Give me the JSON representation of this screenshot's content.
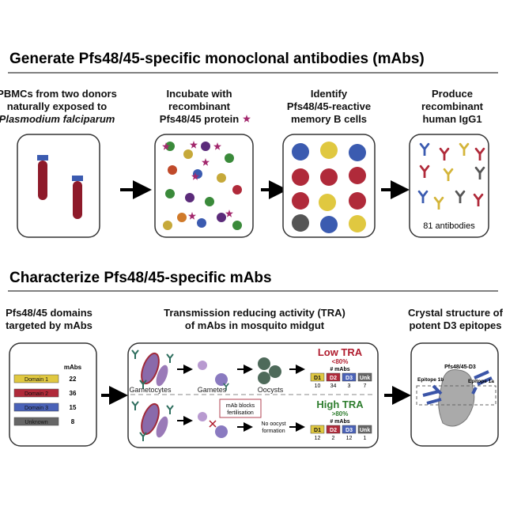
{
  "section1": {
    "title": "Generate Pfs48/45-specific monoclonal antibodies (mAbs)",
    "steps": [
      {
        "line1": "PBMCs from two donors",
        "line2": "naturally exposed to",
        "line3": "Plasmodium falciparum"
      },
      {
        "line1": "Incubate with",
        "line2": "recombinant",
        "line3": "Pfs48/45 protein"
      },
      {
        "line1": "Identify",
        "line2": "Pfs48/45-reactive",
        "line3": "memory B cells"
      },
      {
        "line1": "Produce",
        "line2": "recombinant",
        "line3": "human IgG1"
      }
    ],
    "antibody_count": "81 antibodies"
  },
  "section2": {
    "title": "Characterize Pfs48/45-specific mAbs",
    "domains_header": {
      "line1": "Pfs48/45 domains",
      "line2": "targeted by mAbs"
    },
    "tra_header": {
      "line1": "Transmission reducing activity (TRA)",
      "line2": "of mAbs in mosquito midgut"
    },
    "crystal_header": {
      "line1": "Crystal structure of",
      "line2": "potent D3 epitopes"
    },
    "domains": {
      "column_label": "mAbs",
      "rows": [
        {
          "label": "Domain 1",
          "count": "22",
          "color": "#e0c840"
        },
        {
          "label": "Domain 2",
          "count": "36",
          "color": "#b02a3a"
        },
        {
          "label": "Domain 3",
          "count": "15",
          "color": "#4a62b8"
        },
        {
          "label": "Unknown",
          "count": "8",
          "color": "#666666"
        }
      ]
    },
    "tra": {
      "stage_labels": {
        "gametocytes": "Gametocytes",
        "gametes": "Gametes",
        "oocysts": "Oocysts"
      },
      "block_label": {
        "line1": "mAb blocks",
        "line2": "fertilisation"
      },
      "no_oocyst": {
        "line1": "No oocyst",
        "line2": "formation"
      },
      "low": {
        "title": "Low TRA",
        "threshold": "<80%",
        "mabs_label": "# mAbs",
        "color": "#b01c2e",
        "cols": [
          {
            "label": "D1",
            "value": "10"
          },
          {
            "label": "D2",
            "value": "34"
          },
          {
            "label": "D3",
            "value": "3"
          },
          {
            "label": "Unk",
            "value": "7"
          }
        ]
      },
      "high": {
        "title": "High TRA",
        "threshold": ">80%",
        "mabs_label": "# mAbs",
        "color": "#2e7d2e",
        "cols": [
          {
            "label": "D1",
            "value": "12"
          },
          {
            "label": "D2",
            "value": "2"
          },
          {
            "label": "D3",
            "value": "12"
          },
          {
            "label": "Unk",
            "value": "1"
          }
        ]
      }
    },
    "crystal": {
      "protein": "Pfs48/45-D3",
      "epitope_1b": "Epitope 1b",
      "epitope_1a": "Epitope 1a"
    }
  }
}
